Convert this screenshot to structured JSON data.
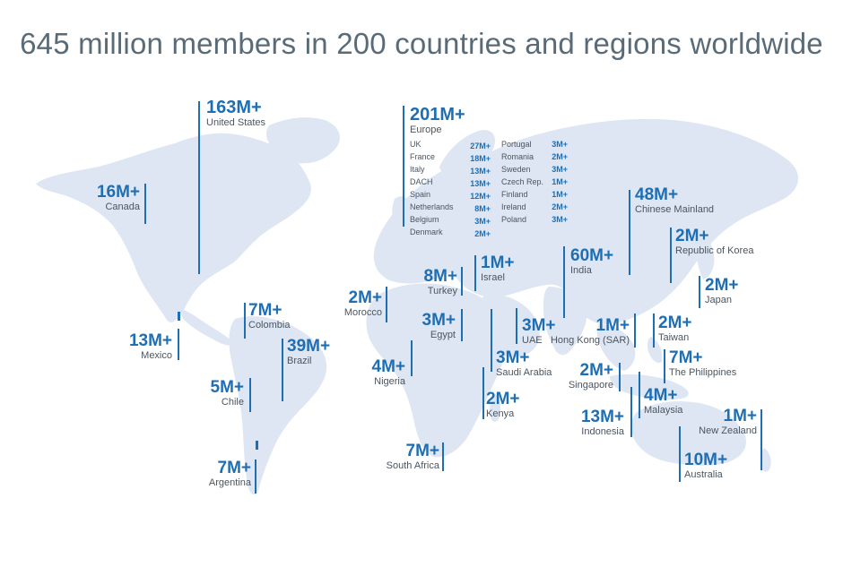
{
  "title": "645 million members in 200 countries and regions worldwide",
  "colors": {
    "land": "#dde6f2",
    "accent": "#1e6eb4",
    "title": "#5a6b78",
    "label": "#4b5560"
  },
  "regions": {
    "us": {
      "value": "163M+",
      "name": "United States"
    },
    "canada": {
      "value": "16M+",
      "name": "Canada"
    },
    "mexico": {
      "value": "13M+",
      "name": "Mexico"
    },
    "colombia": {
      "value": "7M+",
      "name": "Colombia"
    },
    "brazil": {
      "value": "39M+",
      "name": "Brazil"
    },
    "chile": {
      "value": "5M+",
      "name": "Chile"
    },
    "argentina": {
      "value": "7M+",
      "name": "Argentina"
    },
    "europe": {
      "value": "201M+",
      "name": "Europe"
    },
    "morocco": {
      "value": "2M+",
      "name": "Morocco"
    },
    "turkey": {
      "value": "8M+",
      "name": "Turkey"
    },
    "israel": {
      "value": "1M+",
      "name": "Israel"
    },
    "egypt": {
      "value": "3M+",
      "name": "Egypt"
    },
    "nigeria": {
      "value": "4M+",
      "name": "Nigeria"
    },
    "uae": {
      "value": "3M+",
      "name": "UAE"
    },
    "saudi": {
      "value": "3M+",
      "name": "Saudi Arabia"
    },
    "kenya": {
      "value": "2M+",
      "name": "Kenya"
    },
    "southafrica": {
      "value": "7M+",
      "name": "South Africa"
    },
    "india": {
      "value": "60M+",
      "name": "India"
    },
    "china": {
      "value": "48M+",
      "name": "Chinese Mainland"
    },
    "korea": {
      "value": "2M+",
      "name": "Republic of Korea"
    },
    "japan": {
      "value": "2M+",
      "name": "Japan"
    },
    "hongkong": {
      "value": "1M+",
      "name": "Hong Kong (SAR)"
    },
    "taiwan": {
      "value": "2M+",
      "name": "Taiwan"
    },
    "philippines": {
      "value": "7M+",
      "name": "The Philippines"
    },
    "singapore": {
      "value": "2M+",
      "name": "Singapore"
    },
    "malaysia": {
      "value": "4M+",
      "name": "Malaysia"
    },
    "indonesia": {
      "value": "13M+",
      "name": "Indonesia"
    },
    "newzealand": {
      "value": "1M+",
      "name": "New Zealand"
    },
    "australia": {
      "value": "10M+",
      "name": "Australia"
    }
  },
  "europe_breakdown": {
    "left": [
      {
        "country": "UK",
        "value": "27M+"
      },
      {
        "country": "France",
        "value": "18M+"
      },
      {
        "country": "Italy",
        "value": "13M+"
      },
      {
        "country": "DACH",
        "value": "13M+"
      },
      {
        "country": "Spain",
        "value": "12M+"
      },
      {
        "country": "Netherlands",
        "value": "8M+"
      },
      {
        "country": "Belgium",
        "value": "3M+"
      },
      {
        "country": "Denmark",
        "value": "2M+"
      }
    ],
    "right": [
      {
        "country": "Portugal",
        "value": "3M+"
      },
      {
        "country": "Romania",
        "value": "2M+"
      },
      {
        "country": "Sweden",
        "value": "3M+"
      },
      {
        "country": "Czech Rep.",
        "value": "1M+"
      },
      {
        "country": "Finland",
        "value": "1M+"
      },
      {
        "country": "Ireland",
        "value": "2M+"
      },
      {
        "country": "Poland",
        "value": "3M+"
      }
    ]
  }
}
